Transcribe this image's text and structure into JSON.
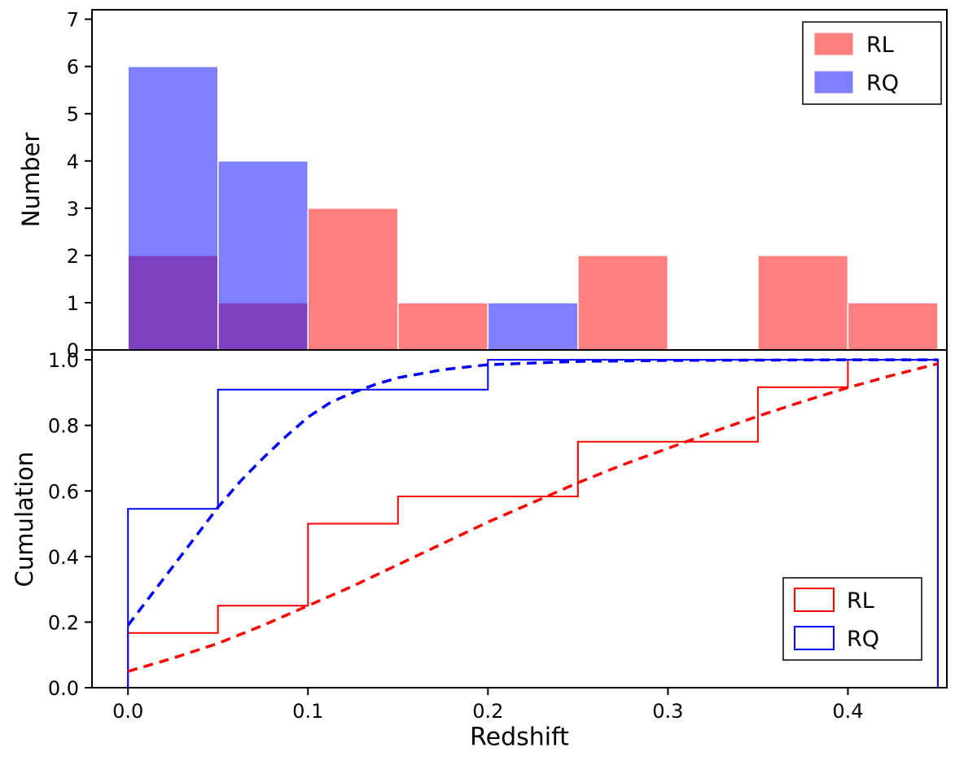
{
  "figure": {
    "background": "#ffffff",
    "xlabel": "Redshift",
    "xlim": [
      -0.02,
      0.455
    ],
    "xticks": [
      0.0,
      0.1,
      0.2,
      0.3,
      0.4
    ],
    "xtick_labels": [
      "0.0",
      "0.1",
      "0.2",
      "0.3",
      "0.4"
    ]
  },
  "top_panel": {
    "ylabel": "Number",
    "ylim": [
      0,
      7.2
    ],
    "yticks": [
      0,
      1,
      2,
      3,
      4,
      5,
      6,
      7
    ],
    "legend": [
      {
        "label": "RL",
        "fill": "rgba(255,0,0,0.5)"
      },
      {
        "label": "RQ",
        "fill": "rgba(0,0,255,0.5)"
      }
    ]
  },
  "bottom_panel": {
    "ylabel": "Cumulation",
    "ylim": [
      0,
      1.03
    ],
    "yticks": [
      0.0,
      0.2,
      0.4,
      0.6,
      0.8,
      1.0
    ],
    "ytick_labels": [
      "0.0",
      "0.2",
      "0.4",
      "0.6",
      "0.8",
      "1.0"
    ],
    "legend": [
      {
        "label": "RL",
        "stroke": "#ff0000"
      },
      {
        "label": "RQ",
        "stroke": "#0000ff"
      }
    ]
  },
  "chart_data": [
    {
      "type": "bar",
      "title": "",
      "ylabel": "Number",
      "ylim": [
        0,
        7.2
      ],
      "bin_edges": [
        0.0,
        0.05,
        0.1,
        0.15,
        0.2,
        0.25,
        0.3,
        0.35,
        0.4,
        0.45
      ],
      "series": [
        {
          "name": "RL",
          "color": "#ff0000",
          "alpha": 0.5,
          "values": [
            2,
            1,
            3,
            1,
            0,
            2,
            0,
            2,
            1
          ]
        },
        {
          "name": "RQ",
          "color": "#0000ff",
          "alpha": 0.5,
          "values": [
            6,
            4,
            0,
            0,
            1,
            0,
            0,
            0,
            0
          ]
        }
      ],
      "legend_position": "upper right",
      "grid": false
    },
    {
      "type": "line",
      "title": "",
      "xlabel": "Redshift",
      "ylabel": "Cumulation",
      "xlim": [
        -0.02,
        0.455
      ],
      "ylim": [
        0,
        1.03
      ],
      "series": [
        {
          "name": "RL empirical CDF",
          "color": "#ff0000",
          "style": "solid",
          "width": 2,
          "x": [
            0,
            0,
            0.05,
            0.05,
            0.1,
            0.1,
            0.15,
            0.15,
            0.25,
            0.25,
            0.35,
            0.35,
            0.4,
            0.4,
            0.45,
            0.45
          ],
          "y": [
            0,
            0.1667,
            0.1667,
            0.25,
            0.25,
            0.5,
            0.5,
            0.5833,
            0.5833,
            0.75,
            0.75,
            0.9167,
            0.9167,
            1.0,
            1.0,
            0
          ]
        },
        {
          "name": "RQ empirical CDF",
          "color": "#0000ff",
          "style": "solid",
          "width": 2,
          "x": [
            0,
            0,
            0.05,
            0.05,
            0.2,
            0.2,
            0.45,
            0.45
          ],
          "y": [
            0,
            0.5455,
            0.5455,
            0.9091,
            0.9091,
            1.0,
            1.0,
            0
          ]
        },
        {
          "name": "RL fitted CDF",
          "color": "#ff0000",
          "style": "dashed",
          "width": 3.5,
          "x": [
            0,
            0.025,
            0.05,
            0.075,
            0.1,
            0.125,
            0.15,
            0.175,
            0.2,
            0.225,
            0.25,
            0.275,
            0.3,
            0.325,
            0.35,
            0.375,
            0.4,
            0.425,
            0.45
          ],
          "y": [
            0.05,
            0.09,
            0.135,
            0.19,
            0.25,
            0.31,
            0.375,
            0.44,
            0.505,
            0.565,
            0.625,
            0.68,
            0.73,
            0.78,
            0.828,
            0.873,
            0.915,
            0.953,
            0.988
          ]
        },
        {
          "name": "RQ fitted CDF",
          "color": "#0000ff",
          "style": "dashed",
          "width": 3.5,
          "x": [
            0,
            0.0125,
            0.025,
            0.0375,
            0.05,
            0.0625,
            0.075,
            0.0875,
            0.1,
            0.1125,
            0.125,
            0.1375,
            0.15,
            0.175,
            0.2,
            0.25,
            0.3,
            0.35,
            0.4,
            0.45
          ],
          "y": [
            0.19,
            0.28,
            0.37,
            0.46,
            0.55,
            0.63,
            0.7,
            0.765,
            0.825,
            0.87,
            0.9,
            0.925,
            0.945,
            0.97,
            0.985,
            0.995,
            0.998,
            0.999,
            1.0,
            1.0
          ]
        }
      ],
      "legend_position": "lower right",
      "grid": false
    }
  ]
}
